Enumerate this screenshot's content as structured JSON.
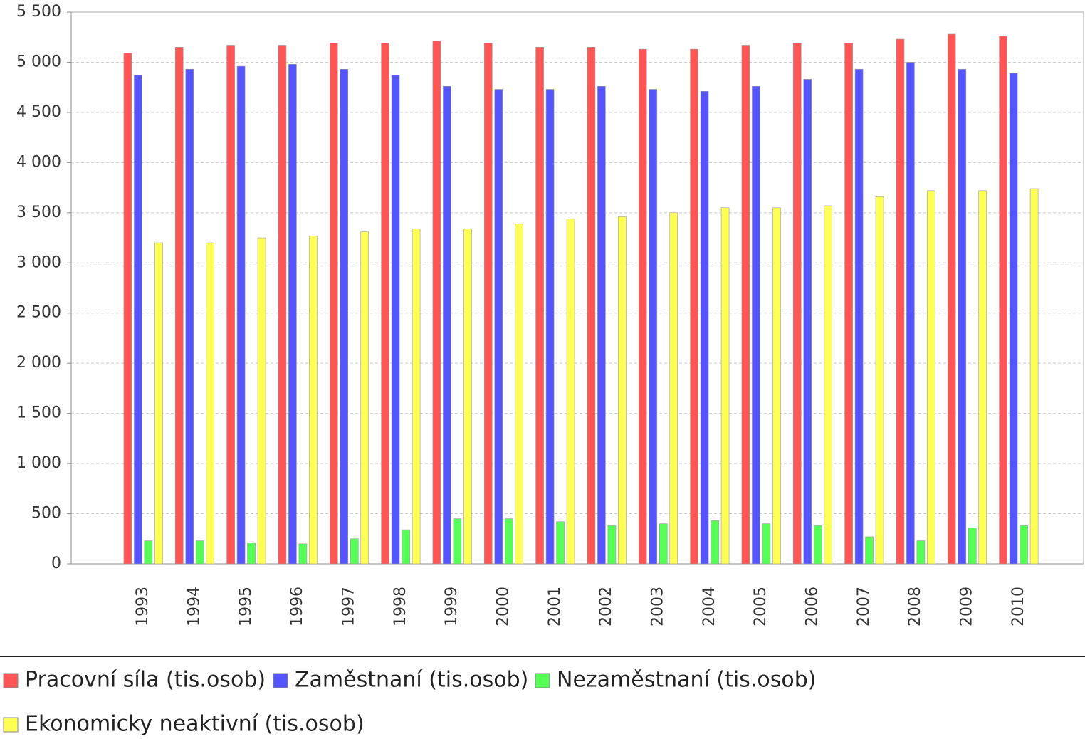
{
  "chart_data": {
    "type": "bar",
    "categories": [
      "1993",
      "1994",
      "1995",
      "1996",
      "1997",
      "1998",
      "1999",
      "2000",
      "2001",
      "2002",
      "2003",
      "2004",
      "2005",
      "2006",
      "2007",
      "2008",
      "2009",
      "2010"
    ],
    "series": [
      {
        "name": "Pracovní síla (tis.osob)",
        "color": "#ff5555",
        "values": [
          5090,
          5150,
          5170,
          5170,
          5190,
          5190,
          5210,
          5190,
          5150,
          5150,
          5130,
          5130,
          5170,
          5190,
          5190,
          5230,
          5280,
          5260
        ]
      },
      {
        "name": "Zaměstnaní (tis.osob)",
        "color": "#5555ff",
        "values": [
          4870,
          4930,
          4960,
          4980,
          4930,
          4870,
          4760,
          4730,
          4730,
          4760,
          4730,
          4710,
          4760,
          4830,
          4930,
          5000,
          4930,
          4890
        ]
      },
      {
        "name": "Nezaměstnaní (tis.osob)",
        "color": "#55ff55",
        "values": [
          230,
          230,
          210,
          200,
          250,
          340,
          450,
          450,
          420,
          380,
          400,
          430,
          400,
          380,
          270,
          230,
          360,
          380
        ]
      },
      {
        "name": "Ekonomicky neaktivní (tis.osob)",
        "color": "#ffff55",
        "values": [
          3200,
          3200,
          3250,
          3270,
          3310,
          3340,
          3340,
          3390,
          3440,
          3460,
          3500,
          3550,
          3550,
          3570,
          3660,
          3720,
          3720,
          3740
        ]
      }
    ],
    "ylim": [
      0,
      5500
    ],
    "yticks": [
      0,
      500,
      {
        "value": 1000,
        "label": "1 000"
      },
      {
        "value": 1500,
        "label": "1 500"
      },
      {
        "value": 2000,
        "label": "2 000"
      },
      {
        "value": 2500,
        "label": "2 500"
      },
      {
        "value": 3000,
        "label": "3 000"
      },
      {
        "value": 3500,
        "label": "3 500"
      },
      {
        "value": 4000,
        "label": "4 000"
      },
      {
        "value": 4500,
        "label": "4 500"
      },
      {
        "value": 5000,
        "label": "5 000"
      },
      {
        "value": 5500,
        "label": "5 500"
      }
    ],
    "grid": true
  }
}
